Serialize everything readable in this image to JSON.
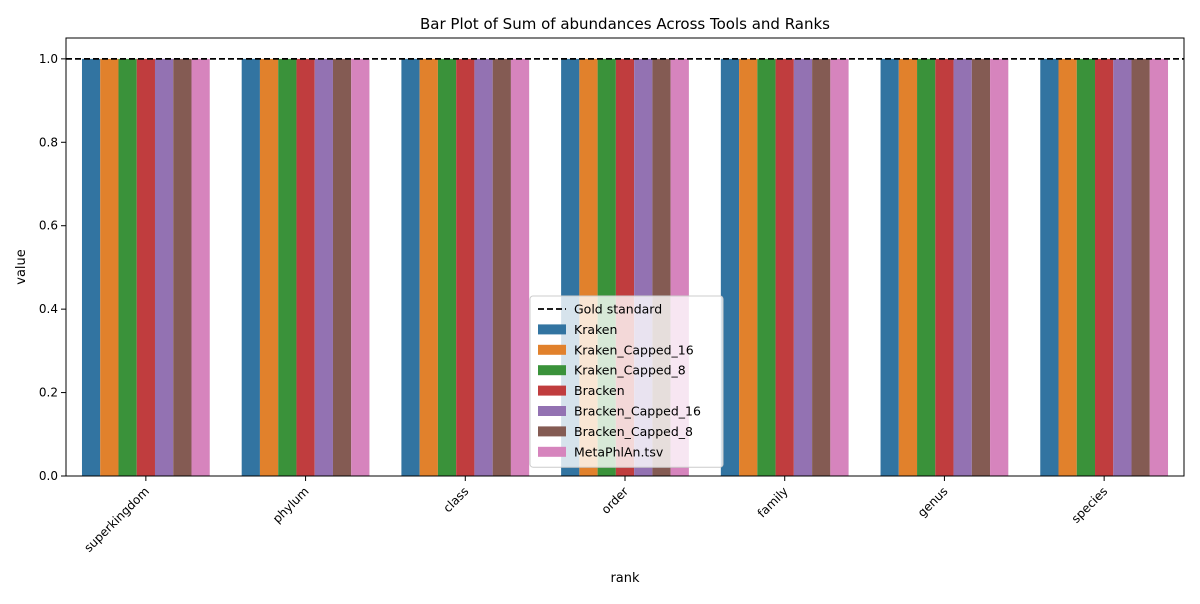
{
  "chart_data": {
    "type": "bar",
    "title": "Bar Plot of Sum of abundances Across Tools and Ranks",
    "xlabel": "rank",
    "ylabel": "value",
    "ylim": [
      0,
      1.05
    ],
    "yticks": [
      "0.0",
      "0.2",
      "0.4",
      "0.6",
      "0.8",
      "1.0"
    ],
    "categories": [
      "superkingdom",
      "phylum",
      "class",
      "order",
      "family",
      "genus",
      "species"
    ],
    "series": [
      {
        "name": "Kraken",
        "color": "#3274a1",
        "values": [
          1.0,
          1.0,
          1.0,
          1.0,
          1.0,
          1.0,
          1.0
        ]
      },
      {
        "name": "Kraken_Capped_16",
        "color": "#e1812c",
        "values": [
          1.0,
          1.0,
          1.0,
          1.0,
          1.0,
          1.0,
          1.0
        ]
      },
      {
        "name": "Kraken_Capped_8",
        "color": "#3a923a",
        "values": [
          1.0,
          1.0,
          1.0,
          1.0,
          1.0,
          1.0,
          1.0
        ]
      },
      {
        "name": "Bracken",
        "color": "#c03d3e",
        "values": [
          1.0,
          1.0,
          1.0,
          1.0,
          1.0,
          1.0,
          1.0
        ]
      },
      {
        "name": "Bracken_Capped_16",
        "color": "#9372b2",
        "values": [
          1.0,
          1.0,
          1.0,
          1.0,
          1.0,
          1.0,
          1.0
        ]
      },
      {
        "name": "Bracken_Capped_8",
        "color": "#845b53",
        "values": [
          1.0,
          1.0,
          1.0,
          1.0,
          1.0,
          1.0,
          1.0
        ]
      },
      {
        "name": "MetaPhlAn.tsv",
        "color": "#d684bd",
        "values": [
          1.0,
          1.0,
          1.0,
          1.0,
          1.0,
          1.0,
          1.0
        ]
      }
    ],
    "reference_line": {
      "name": "Gold standard",
      "value": 1.0,
      "style": "dashed",
      "color": "#000000"
    },
    "legend_position": "lower center",
    "grid": false
  }
}
